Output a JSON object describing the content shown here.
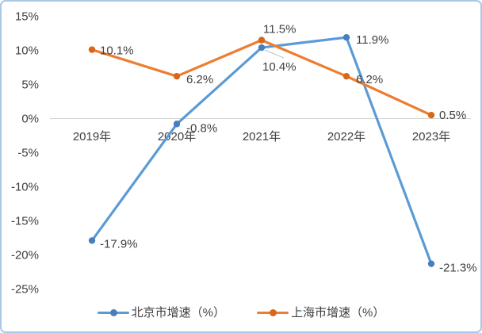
{
  "chart_data": {
    "type": "line",
    "title": "",
    "xlabel": "",
    "ylabel": "",
    "categories": [
      "2019年",
      "2020年",
      "2021年",
      "2022年",
      "2023年"
    ],
    "series": [
      {
        "name": "北京市增速（%）",
        "values": [
          -17.9,
          -0.8,
          10.4,
          11.9,
          -21.3
        ],
        "point_labels": [
          "-17.9%",
          "-0.8%",
          "10.4%",
          "11.9%",
          "-21.3%"
        ],
        "color": "#5b9bd5",
        "marker_color": "#4a7ebb"
      },
      {
        "name": "上海市增速（%）",
        "values": [
          10.1,
          6.2,
          11.5,
          6.2,
          0.5
        ],
        "point_labels": [
          "10.1%",
          "6.2%",
          "11.5%",
          "6.2%",
          "0.5%"
        ],
        "color": "#ed7d31",
        "marker_color": "#d8671a"
      }
    ],
    "y_ticks": [
      {
        "label": "15%",
        "value": 15
      },
      {
        "label": "10%",
        "value": 10
      },
      {
        "label": "5%",
        "value": 5
      },
      {
        "label": "0%",
        "value": 0
      },
      {
        "label": "-5%",
        "value": -5
      },
      {
        "label": "-10%",
        "value": -10
      },
      {
        "label": "-15%",
        "value": -15
      },
      {
        "label": "-20%",
        "value": -20
      },
      {
        "label": "-25%",
        "value": -25
      }
    ],
    "ylim": [
      -25,
      15
    ],
    "grid": "zero-line-only",
    "legend_position": "bottom"
  },
  "colors": {
    "frame_border": "#a9c7e6",
    "axis_text": "#404040",
    "label_text": "#404040",
    "zero_line": "#d6d6d6",
    "leader_line": "#a6a6a6",
    "background": "#ffffff"
  }
}
